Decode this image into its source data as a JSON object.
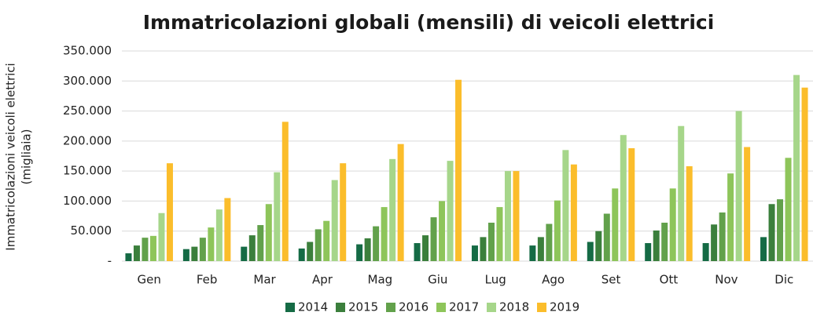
{
  "chart_data": {
    "type": "bar",
    "title": "Immatricolazioni globali (mensili) di veicoli elettrici",
    "y_label": [
      "Immatricolazioni veicoli elettrici",
      "(migliaia)"
    ],
    "categories": [
      "Gen",
      "Feb",
      "Mar",
      "Apr",
      "Mag",
      "Giu",
      "Lug",
      "Ago",
      "Set",
      "Ott",
      "Nov",
      "Dic"
    ],
    "series": [
      {
        "name": "2014",
        "color": "#156b45",
        "values": [
          13000,
          20000,
          24000,
          21000,
          28000,
          30000,
          26000,
          26000,
          32000,
          30000,
          30000,
          40000
        ]
      },
      {
        "name": "2015",
        "color": "#3b7f3c",
        "values": [
          26000,
          24000,
          43000,
          32000,
          38000,
          43000,
          40000,
          40000,
          50000,
          51000,
          61000,
          95000
        ]
      },
      {
        "name": "2016",
        "color": "#62a14b",
        "values": [
          39000,
          39000,
          60000,
          53000,
          58000,
          73000,
          64000,
          62000,
          79000,
          64000,
          81000,
          103000
        ]
      },
      {
        "name": "2017",
        "color": "#8ec55a",
        "values": [
          42000,
          56000,
          95000,
          67000,
          90000,
          100000,
          90000,
          101000,
          121000,
          121000,
          146000,
          172000
        ]
      },
      {
        "name": "2018",
        "color": "#a6d68a",
        "values": [
          80000,
          86000,
          148000,
          135000,
          170000,
          167000,
          150000,
          185000,
          210000,
          225000,
          250000,
          310000
        ]
      },
      {
        "name": "2019",
        "color": "#fbbd2b",
        "values": [
          163000,
          105000,
          232000,
          163000,
          195000,
          302000,
          150000,
          161000,
          188000,
          158000,
          190000,
          289000
        ]
      }
    ],
    "ylim": [
      0,
      350000
    ],
    "yticks": [
      {
        "value": 0,
        "label": "-"
      },
      {
        "value": 50000,
        "label": "50.000"
      },
      {
        "value": 100000,
        "label": "100.000"
      },
      {
        "value": 150000,
        "label": "150.000"
      },
      {
        "value": 200000,
        "label": "200.000"
      },
      {
        "value": 250000,
        "label": "250.000"
      },
      {
        "value": 300000,
        "label": "300.000"
      },
      {
        "value": 350000,
        "label": "350.000"
      }
    ],
    "grid": true
  }
}
